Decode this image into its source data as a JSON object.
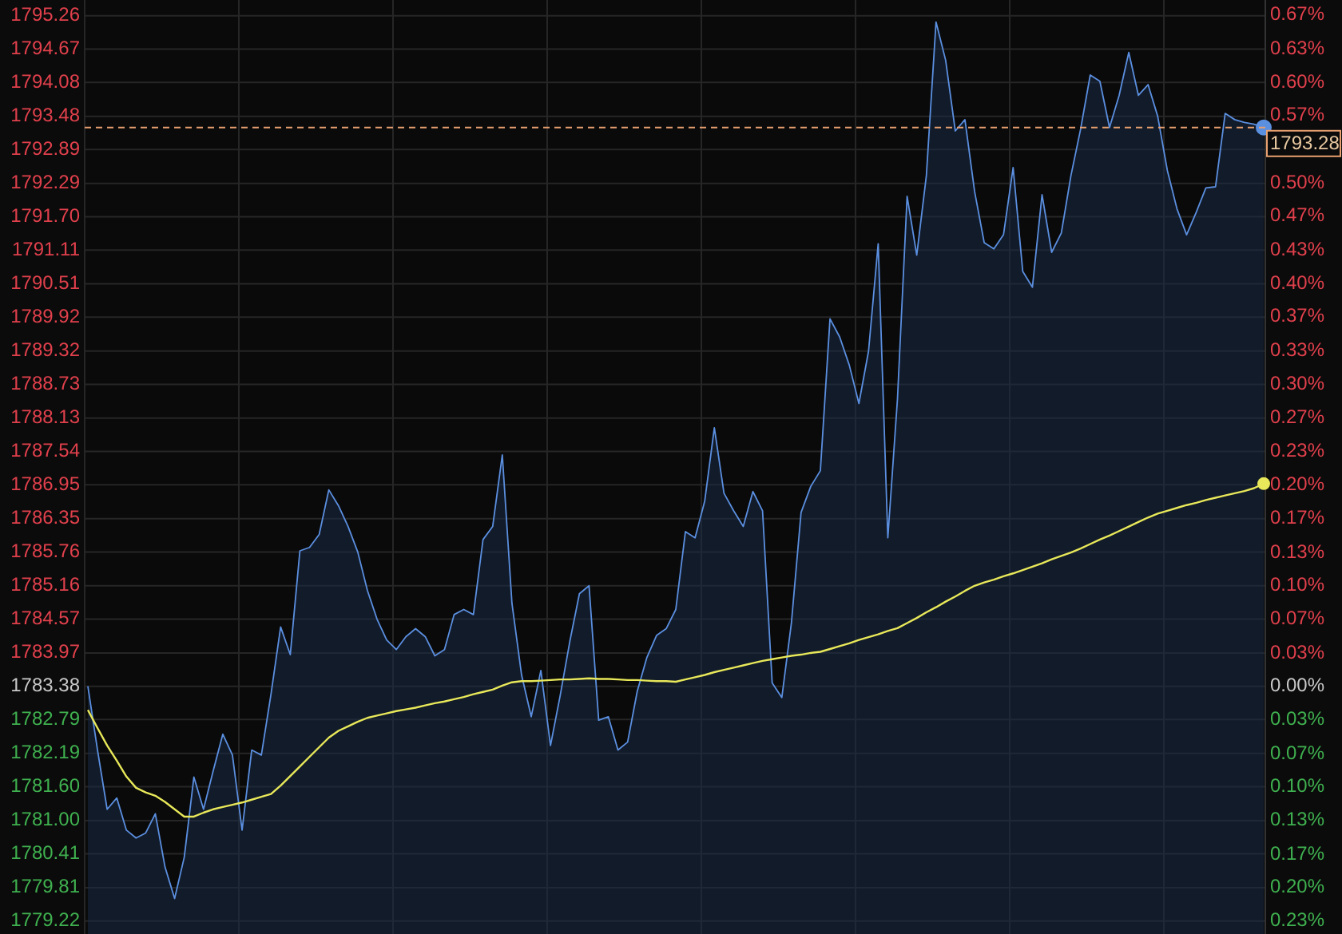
{
  "chart_data": {
    "type": "area",
    "categories": [
      null,
      null,
      null,
      null,
      null,
      null,
      null,
      null,
      null,
      null,
      null,
      null,
      null,
      null,
      null,
      null,
      null,
      null,
      null,
      null,
      null,
      null,
      null,
      null,
      null,
      null,
      null,
      null,
      null,
      null,
      null,
      null,
      null,
      null,
      null,
      null,
      null,
      null,
      null,
      null,
      null,
      null,
      null,
      null,
      null,
      null,
      null,
      null,
      null,
      null,
      null,
      null,
      null,
      null,
      null,
      null,
      null,
      null,
      null,
      null,
      null,
      null,
      null,
      null,
      null,
      null,
      null,
      null,
      null,
      null,
      null,
      null,
      null,
      null,
      null,
      null,
      null,
      null,
      null,
      null,
      null,
      null,
      null,
      null,
      null,
      null,
      null,
      null,
      null,
      null,
      null,
      null,
      null,
      null,
      null,
      null,
      null,
      null,
      null,
      null,
      null,
      null,
      null,
      null,
      null,
      null,
      null,
      null,
      null,
      null,
      null,
      null,
      null,
      null,
      null,
      null,
      null,
      null,
      null,
      null,
      null,
      null,
      null
    ],
    "series": [
      {
        "color": "#5b8fe0",
        "values": [
          1783.38,
          1782.25,
          1781.2,
          1781.4,
          1780.83,
          1780.69,
          1780.78,
          1781.12,
          1780.18,
          1779.62,
          1780.35,
          1781.77,
          1781.2,
          1781.88,
          1782.53,
          1782.16,
          1780.83,
          1782.25,
          1782.16,
          1783.24,
          1784.43,
          1783.94,
          1785.78,
          1785.84,
          1786.07,
          1786.86,
          1786.58,
          1786.21,
          1785.76,
          1785.08,
          1784.57,
          1784.2,
          1784.03,
          1784.26,
          1784.4,
          1784.26,
          1783.92,
          1784.03,
          1784.65,
          1784.74,
          1784.65,
          1785.98,
          1786.21,
          1787.48,
          1784.85,
          1783.58,
          1782.84,
          1783.66,
          1782.33,
          1783.21,
          1784.17,
          1785.02,
          1785.16,
          1782.78,
          1782.84,
          1782.25,
          1782.39,
          1783.29,
          1783.89,
          1784.28,
          1784.4,
          1784.74,
          1786.12,
          1786.01,
          1786.66,
          1787.96,
          1786.8,
          1786.49,
          1786.21,
          1786.83,
          1786.49,
          1783.44,
          1783.18,
          1784.51,
          1786.46,
          1786.92,
          1787.2,
          1789.89,
          1789.57,
          1789.07,
          1788.39,
          1789.32,
          1791.22,
          1786.01,
          1788.47,
          1792.06,
          1791.02,
          1792.43,
          1795.15,
          1794.47,
          1793.22,
          1793.42,
          1792.15,
          1791.24,
          1791.13,
          1791.38,
          1792.57,
          1790.73,
          1790.45,
          1792.09,
          1791.07,
          1791.41,
          1792.43,
          1793.25,
          1794.21,
          1794.1,
          1793.28,
          1793.85,
          1794.61,
          1793.85,
          1794.04,
          1793.48,
          1792.52,
          1791.84,
          1791.38,
          1791.78,
          1792.21,
          1792.23,
          1793.53,
          1793.42,
          1793.37,
          1793.34,
          1793.28
        ]
      },
      {
        "type": "line",
        "color": "#e8e85a",
        "values": [
          1782.96,
          1782.64,
          1782.33,
          1782.06,
          1781.78,
          1781.58,
          1781.5,
          1781.44,
          1781.33,
          1781.2,
          1781.07,
          1781.07,
          1781.14,
          1781.2,
          1781.24,
          1781.28,
          1781.32,
          1781.37,
          1781.42,
          1781.47,
          1781.62,
          1781.79,
          1781.96,
          1782.13,
          1782.3,
          1782.47,
          1782.59,
          1782.67,
          1782.75,
          1782.82,
          1782.86,
          1782.9,
          1782.94,
          1782.97,
          1783.0,
          1783.04,
          1783.08,
          1783.11,
          1783.15,
          1783.19,
          1783.24,
          1783.28,
          1783.32,
          1783.39,
          1783.45,
          1783.47,
          1783.47,
          1783.48,
          1783.49,
          1783.5,
          1783.5,
          1783.51,
          1783.52,
          1783.51,
          1783.51,
          1783.5,
          1783.49,
          1783.49,
          1783.48,
          1783.47,
          1783.47,
          1783.46,
          1783.5,
          1783.54,
          1783.58,
          1783.63,
          1783.67,
          1783.71,
          1783.75,
          1783.79,
          1783.83,
          1783.86,
          1783.89,
          1783.92,
          1783.94,
          1783.97,
          1783.99,
          1784.04,
          1784.09,
          1784.14,
          1784.2,
          1784.25,
          1784.3,
          1784.36,
          1784.41,
          1784.5,
          1784.59,
          1784.69,
          1784.78,
          1784.88,
          1784.97,
          1785.07,
          1785.16,
          1785.22,
          1785.27,
          1785.33,
          1785.38,
          1785.44,
          1785.5,
          1785.56,
          1785.63,
          1785.69,
          1785.75,
          1785.82,
          1785.9,
          1785.98,
          1786.05,
          1786.13,
          1786.21,
          1786.29,
          1786.37,
          1786.44,
          1786.49,
          1786.54,
          1786.59,
          1786.63,
          1786.68,
          1786.72,
          1786.76,
          1786.8,
          1786.84,
          1786.89,
          1786.97
        ]
      }
    ],
    "ylim": [
      1778.99,
      1795.54
    ],
    "yticks": [
      1795.26,
      1794.67,
      1794.08,
      1793.48,
      1792.89,
      1792.29,
      {
        "value": 1791.7,
        "label": "1791.70"
      },
      1791.11,
      1790.51,
      1789.92,
      1789.32,
      1788.73,
      1788.13,
      1787.54,
      1786.95,
      1786.35,
      1785.76,
      1785.16,
      1784.57,
      1783.97,
      1783.38,
      1782.79,
      1782.19,
      {
        "value": 1781.6,
        "label": "1781.60"
      },
      {
        "value": 1781,
        "label": "1781.00"
      },
      1780.41,
      1779.81,
      1779.22
    ],
    "y2lim": [
      -0.246,
      0.682
    ],
    "y2ticks": [
      {
        "value": 0.667,
        "label": "0.67%"
      },
      {
        "value": 0.633,
        "label": "0.63%"
      },
      {
        "value": 0.6,
        "label": "0.60%"
      },
      {
        "value": 0.567,
        "label": "0.57%"
      },
      {
        "value": 0.5,
        "label": "0.50%"
      },
      {
        "value": 0.467,
        "label": "0.47%"
      },
      {
        "value": 0.433,
        "label": "0.43%"
      },
      {
        "value": 0.4,
        "label": "0.40%"
      },
      {
        "value": 0.367,
        "label": "0.37%"
      },
      {
        "value": 0.333,
        "label": "0.33%"
      },
      {
        "value": 0.3,
        "label": "0.30%"
      },
      {
        "value": 0.267,
        "label": "0.27%"
      },
      {
        "value": 0.233,
        "label": "0.23%"
      },
      {
        "value": 0.2,
        "label": "0.20%"
      },
      {
        "value": 0.167,
        "label": "0.17%"
      },
      {
        "value": 0.133,
        "label": "0.13%"
      },
      {
        "value": 0.1,
        "label": "0.10%"
      },
      {
        "value": 0.067,
        "label": "0.07%"
      },
      {
        "value": 0.033,
        "label": "0.03%"
      },
      {
        "value": 0,
        "label": "0.00%"
      },
      {
        "value": -0.033,
        "label": "0.03%"
      },
      {
        "value": -0.067,
        "label": "0.07%"
      },
      {
        "value": -0.1,
        "label": "0.10%"
      },
      {
        "value": -0.133,
        "label": "0.13%"
      },
      {
        "value": -0.167,
        "label": "0.17%"
      },
      {
        "value": -0.2,
        "label": "0.20%"
      },
      {
        "value": -0.233,
        "label": "0.23%"
      }
    ],
    "ref_lines": [
      {
        "axis": "y",
        "value": 1793.28,
        "label": "1793.28",
        "color": "#e8a070",
        "line_style": "dashed"
      }
    ],
    "grid": true
  }
}
